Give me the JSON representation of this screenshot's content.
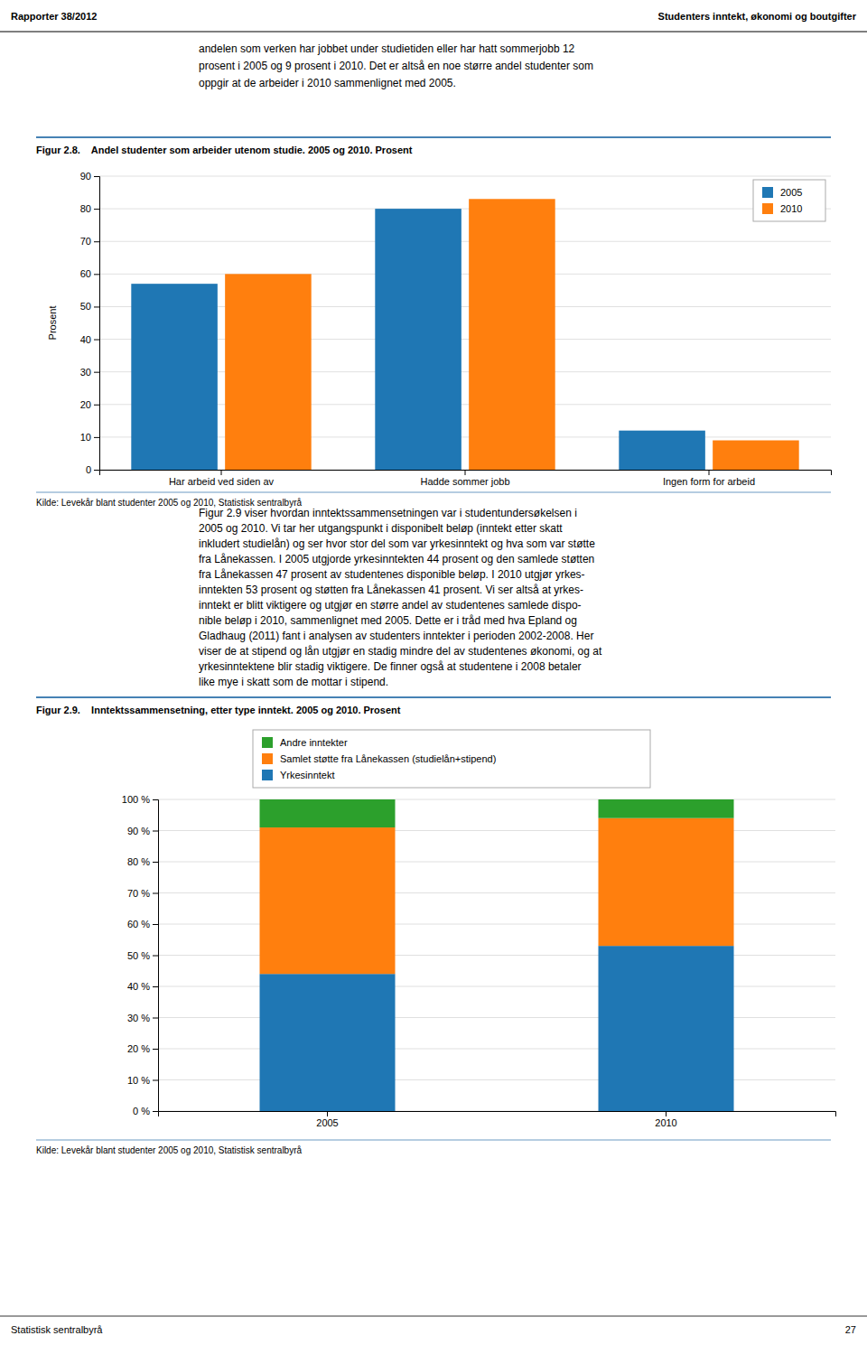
{
  "header_left": "Rapporter 38/2012",
  "header_right": "Studenters inntekt, økonomi og boutgifter",
  "body_text": [
    "andelen som verken har jobbet under studietiden eller har hatt sommerjobb 12",
    "prosent i 2005 og 9 prosent i 2010. Det er altså en noe større andel studenter som",
    "oppgir at de arbeider i 2010 sammenlignet med 2005."
  ],
  "body_text2": [
    "Figur 2.9 viser hvordan inntektssammensetningen var i studentundersøkelsen i",
    "2005 og 2010. Vi tar her utgangspunkt i disponibelt beløp (inntekt etter skatt",
    "inkludert studielån) og ser hvor stor del som var yrkesinntekt og hva som var støtte",
    "fra Lånekassen. I 2005 utgjorde yrkesinntekten 44 prosent og den samlede støtten",
    "fra Lånekassen 47 prosent av studentenes disponible beløp. I 2010 utgjør yrkes-",
    "inntekten 53 prosent og støtten fra Lånekassen 41 prosent. Vi ser altså at yrkes-",
    "inntekt er blitt viktigere og utgjør en større andel av studentenes samlede dispo-",
    "nible beløp i 2010, sammenlignet med 2005. Dette er i tråd med hva Epland og",
    "Gladhaug (2011) fant i analysen av studenters inntekter i perioden 2002-2008. Her",
    "viser de at stipend og lån utgjør en stadig mindre del av studentenes økonomi, og at",
    "yrkesinntektene blir stadig viktigere. De finner også at studentene i 2008 betaler",
    "like mye i skatt som de mottar i stipend."
  ],
  "footer_left": "Statistisk sentralbyrå",
  "footer_right": "27",
  "chart_data": [
    {
      "type": "bar",
      "title": "Figur 2.8.    Andel studenter som arbeider utenom studie. 2005 og 2010. Prosent",
      "ylabel": "Prosent",
      "categories": [
        "Har arbeid ved siden av",
        "Hadde sommer jobb",
        "Ingen form for arbeid"
      ],
      "series": [
        {
          "name": "2005",
          "values": [
            57,
            80,
            12
          ]
        },
        {
          "name": "2010",
          "values": [
            60,
            83,
            9
          ]
        }
      ],
      "ylim": [
        0,
        90
      ],
      "yticks": [
        0,
        10,
        20,
        30,
        40,
        50,
        60,
        70,
        80,
        90
      ],
      "grid": true,
      "legend": "upper right",
      "annotations": [
        "Kilde: Levekår blant studenter 2005 og 2010, Statistisk sentralbyrå"
      ]
    },
    {
      "type": "bar",
      "stacked": true,
      "title": "Figur 2.9.    Inntektssammensetning, etter type inntekt. 2005 og 2010. Prosent",
      "categories": [
        "2005",
        "2010"
      ],
      "series": [
        {
          "name": "Yrkesinntekt",
          "values": [
            44,
            53
          ]
        },
        {
          "name": "Samlet støtte fra Lånekassen (studielån+stipend)",
          "values": [
            47,
            41
          ]
        },
        {
          "name": "Andre inntekter",
          "values": [
            9,
            6
          ]
        }
      ],
      "ylim": [
        0,
        100
      ],
      "yticks": [
        {
          "value": 0,
          "label": "0 %"
        },
        {
          "value": 10,
          "label": "10 %"
        },
        {
          "value": 20,
          "label": "20 %"
        },
        {
          "value": 30,
          "label": "30 %"
        },
        {
          "value": 40,
          "label": "40 %"
        },
        {
          "value": 50,
          "label": "50 %"
        },
        {
          "value": 60,
          "label": "60 %"
        },
        {
          "value": 70,
          "label": "70 %"
        },
        {
          "value": 80,
          "label": "80 %"
        },
        {
          "value": 90,
          "label": "90 %"
        },
        {
          "value": 100,
          "label": "100 %"
        }
      ],
      "grid": true,
      "legend": "top",
      "annotations": [
        "Kilde: Levekår blant studenter 2005 og 2010, Statistisk sentralbyrå"
      ]
    }
  ]
}
